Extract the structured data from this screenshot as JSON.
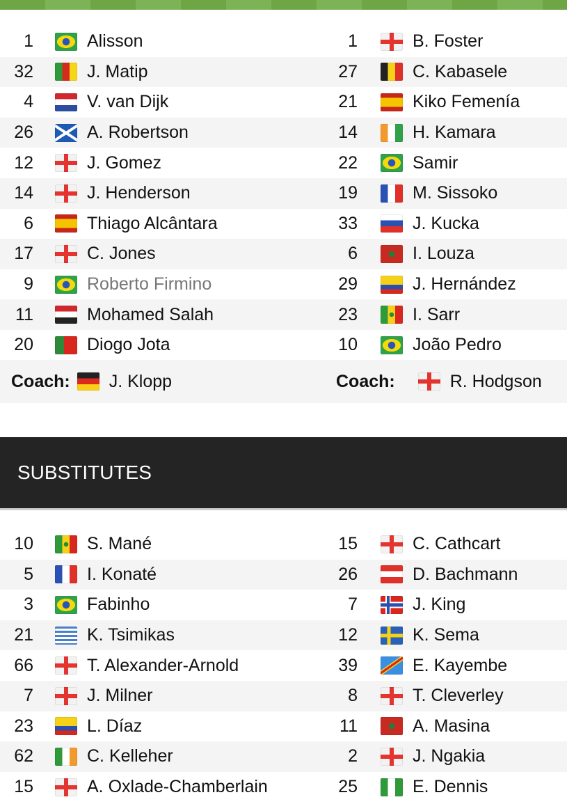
{
  "header_bar_color": "#7db356",
  "lineups": {
    "home": [
      {
        "num": "1",
        "flag": "brazil",
        "name": "Alisson"
      },
      {
        "num": "32",
        "flag": "cameroon",
        "name": "J. Matip"
      },
      {
        "num": "4",
        "flag": "netherlands",
        "name": "V. van Dijk"
      },
      {
        "num": "26",
        "flag": "scotland",
        "name": "A. Robertson"
      },
      {
        "num": "12",
        "flag": "england",
        "name": "J. Gomez"
      },
      {
        "num": "14",
        "flag": "england",
        "name": "J. Henderson"
      },
      {
        "num": "6",
        "flag": "spain",
        "name": "Thiago Alcântara"
      },
      {
        "num": "17",
        "flag": "england",
        "name": "C. Jones"
      },
      {
        "num": "9",
        "flag": "brazil",
        "name": "Roberto Firmino",
        "dim": true
      },
      {
        "num": "11",
        "flag": "egypt",
        "name": "Mohamed Salah"
      },
      {
        "num": "20",
        "flag": "portugal",
        "name": "Diogo Jota"
      }
    ],
    "away": [
      {
        "num": "1",
        "flag": "england",
        "name": "B. Foster"
      },
      {
        "num": "27",
        "flag": "belgium",
        "name": "C. Kabasele"
      },
      {
        "num": "21",
        "flag": "spain",
        "name": "Kiko Femenía"
      },
      {
        "num": "14",
        "flag": "ivory-coast",
        "name": "H. Kamara"
      },
      {
        "num": "22",
        "flag": "brazil",
        "name": "Samir"
      },
      {
        "num": "19",
        "flag": "france",
        "name": "M. Sissoko"
      },
      {
        "num": "33",
        "flag": "slovakia",
        "name": "J. Kucka"
      },
      {
        "num": "6",
        "flag": "morocco",
        "name": "I. Louza"
      },
      {
        "num": "29",
        "flag": "colombia",
        "name": "J. Hernández"
      },
      {
        "num": "23",
        "flag": "senegal",
        "name": "I. Sarr"
      },
      {
        "num": "10",
        "flag": "brazil",
        "name": "João Pedro"
      }
    ],
    "coach_label": "Coach:",
    "home_coach": {
      "flag": "germany",
      "name": "J. Klopp"
    },
    "away_coach": {
      "flag": "england",
      "name": "R. Hodgson"
    }
  },
  "substitutes": {
    "title": "SUBSTITUTES",
    "home": [
      {
        "num": "10",
        "flag": "senegal",
        "name": "S. Mané"
      },
      {
        "num": "5",
        "flag": "france",
        "name": "I. Konaté"
      },
      {
        "num": "3",
        "flag": "brazil",
        "name": "Fabinho"
      },
      {
        "num": "21",
        "flag": "greece",
        "name": "K. Tsimikas"
      },
      {
        "num": "66",
        "flag": "england",
        "name": "T. Alexander-Arnold"
      },
      {
        "num": "7",
        "flag": "england",
        "name": "J. Milner"
      },
      {
        "num": "23",
        "flag": "colombia",
        "name": "L. Díaz"
      },
      {
        "num": "62",
        "flag": "ireland",
        "name": "C. Kelleher"
      },
      {
        "num": "15",
        "flag": "england",
        "name": "A. Oxlade-Chamberlain"
      }
    ],
    "away": [
      {
        "num": "15",
        "flag": "northern-ireland",
        "name": "C. Cathcart"
      },
      {
        "num": "26",
        "flag": "austria",
        "name": "D. Bachmann"
      },
      {
        "num": "7",
        "flag": "norway",
        "name": "J. King"
      },
      {
        "num": "12",
        "flag": "sweden",
        "name": "K. Sema"
      },
      {
        "num": "39",
        "flag": "dr-congo",
        "name": "E. Kayembe"
      },
      {
        "num": "8",
        "flag": "england",
        "name": "T. Cleverley"
      },
      {
        "num": "11",
        "flag": "morocco",
        "name": "A. Masina"
      },
      {
        "num": "2",
        "flag": "england",
        "name": "J. Ngakia"
      },
      {
        "num": "25",
        "flag": "nigeria",
        "name": "E. Dennis"
      }
    ]
  }
}
